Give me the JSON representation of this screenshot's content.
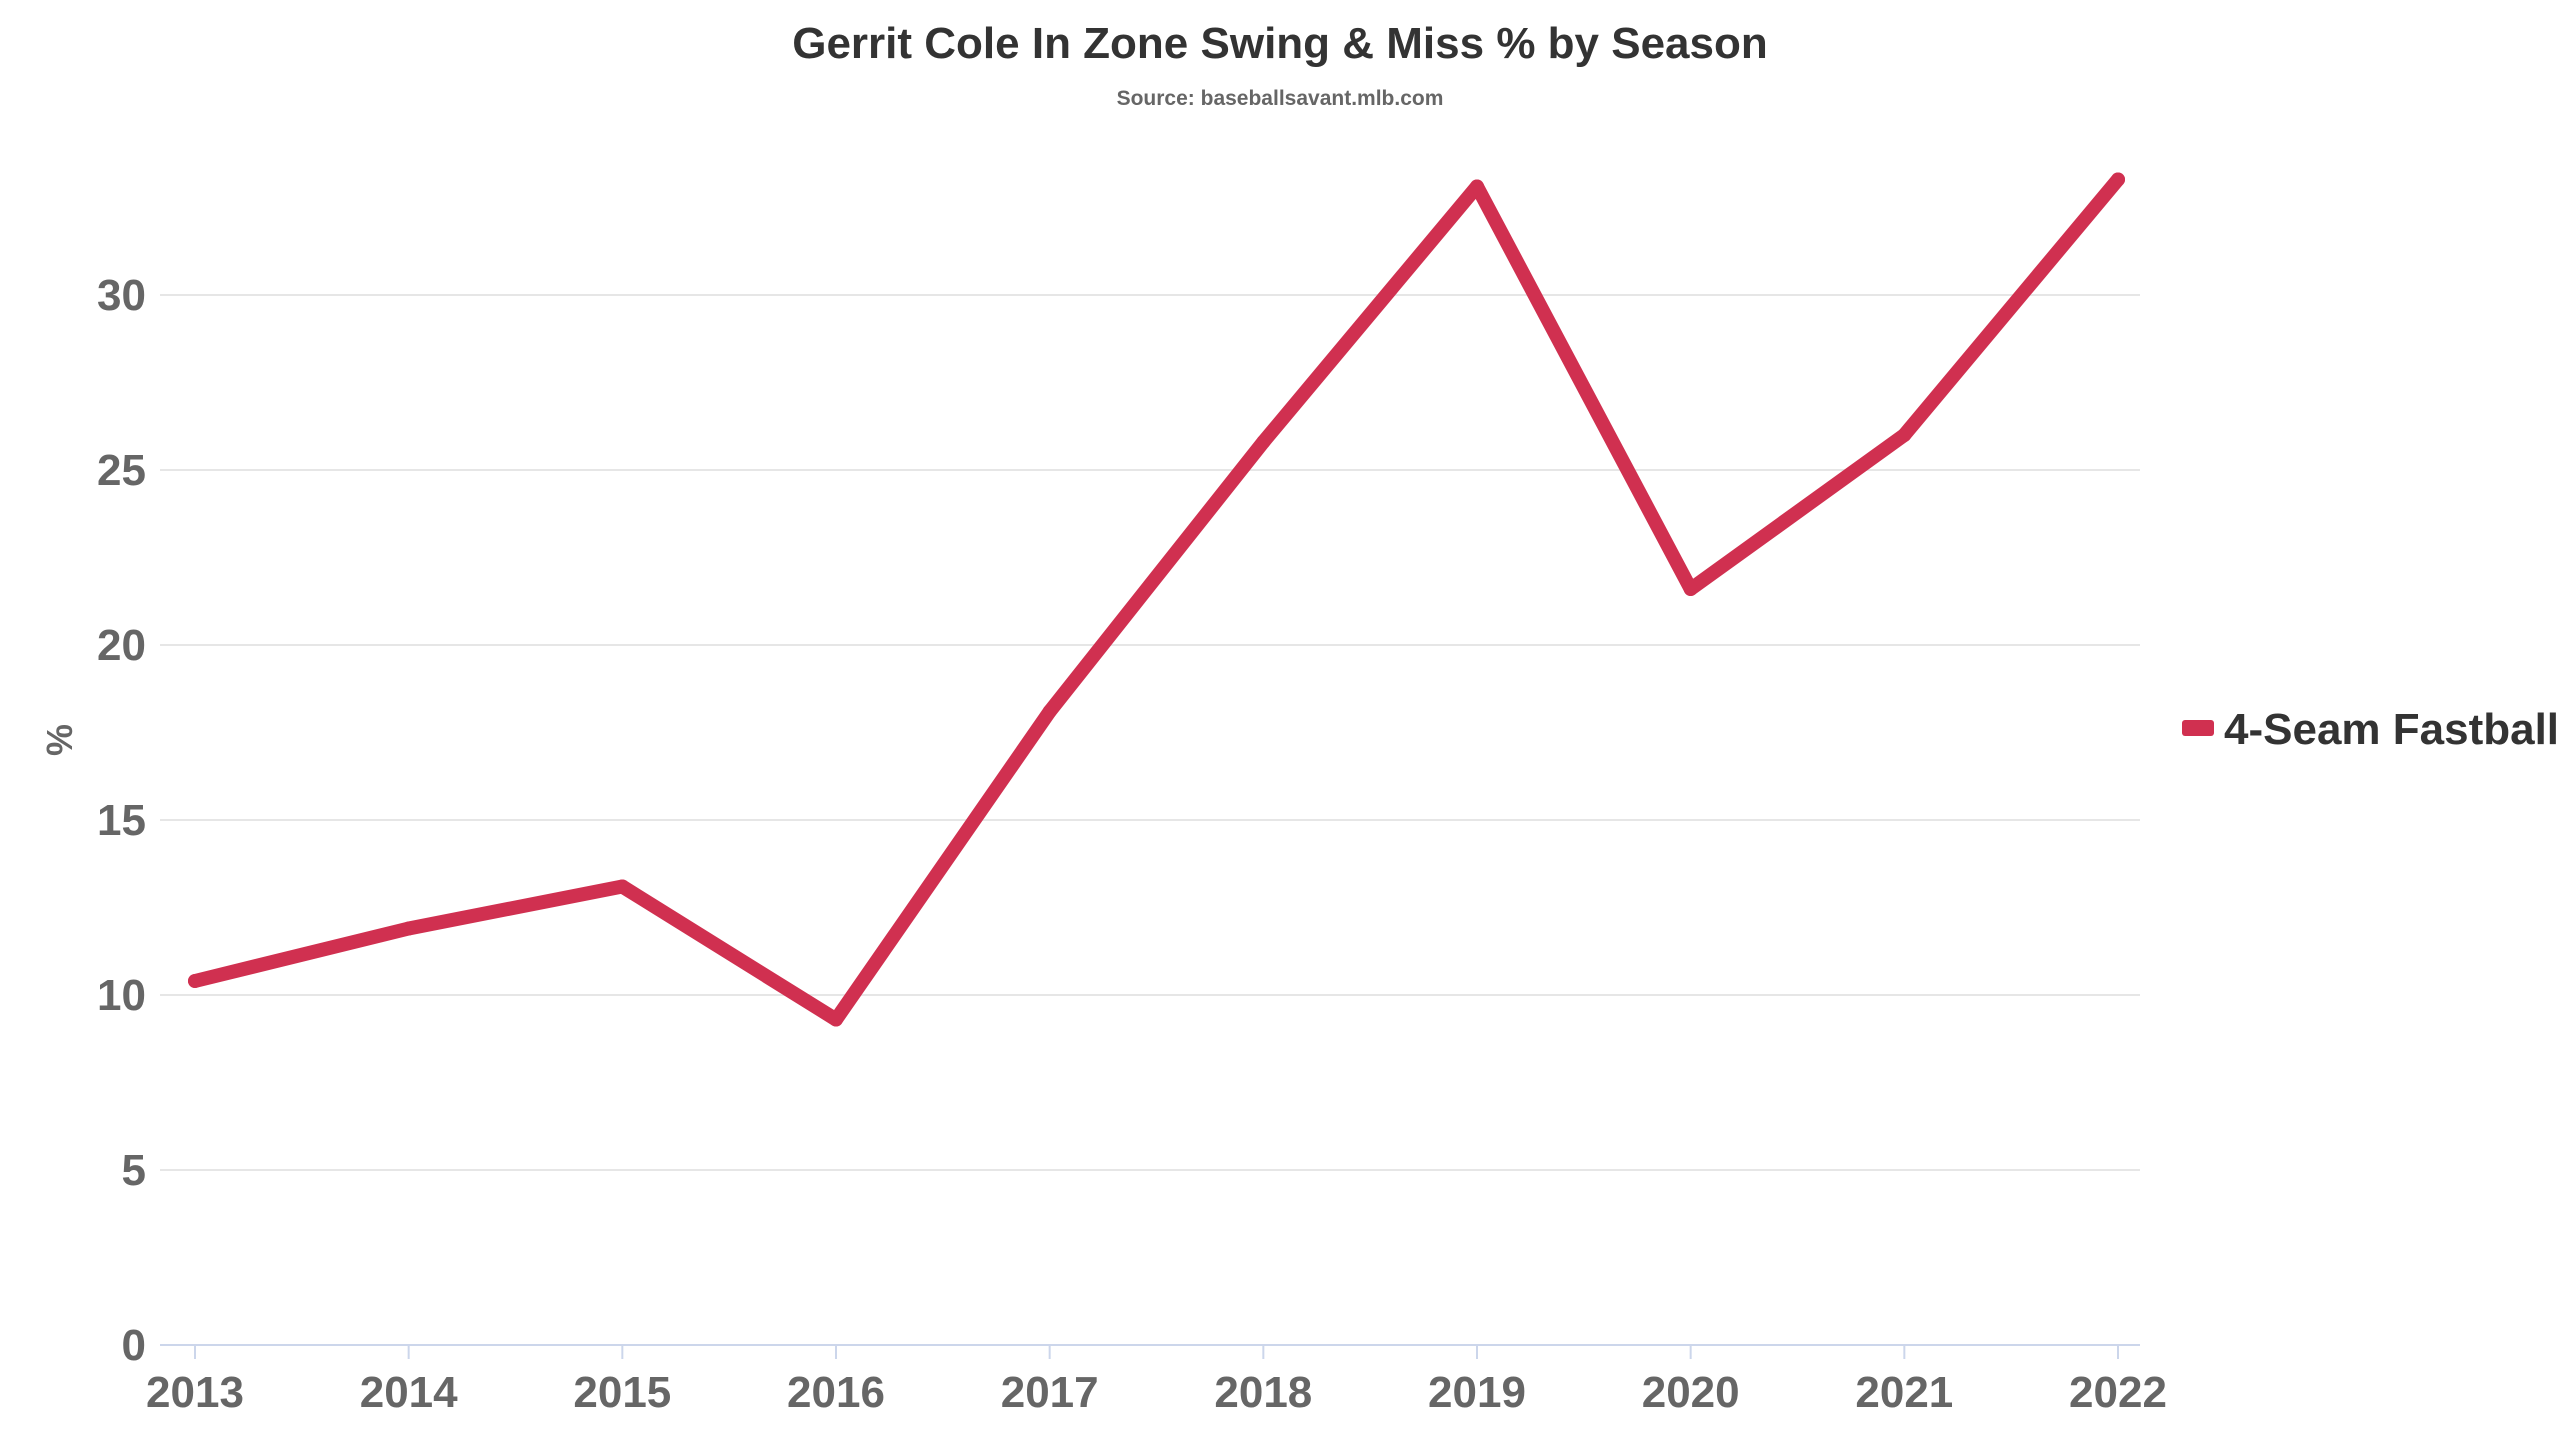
{
  "chart_data": {
    "type": "line",
    "title": "Gerrit Cole In Zone Swing & Miss % by Season",
    "subtitle": "Source: baseballsavant.mlb.com",
    "xlabel": "",
    "ylabel": "%",
    "ylim": [
      0,
      35
    ],
    "yticks": [
      0,
      5,
      10,
      15,
      20,
      25,
      30
    ],
    "x": [
      "2013",
      "2014",
      "2015",
      "2016",
      "2017",
      "2018",
      "2019",
      "2020",
      "2021",
      "2022"
    ],
    "series": [
      {
        "name": "4-Seam Fastball",
        "color": "#d03050",
        "values": [
          10.4,
          11.9,
          13.1,
          9.3,
          18.1,
          25.8,
          33.1,
          21.6,
          26.0,
          33.3
        ]
      }
    ],
    "grid": true,
    "legend_position": "right"
  }
}
